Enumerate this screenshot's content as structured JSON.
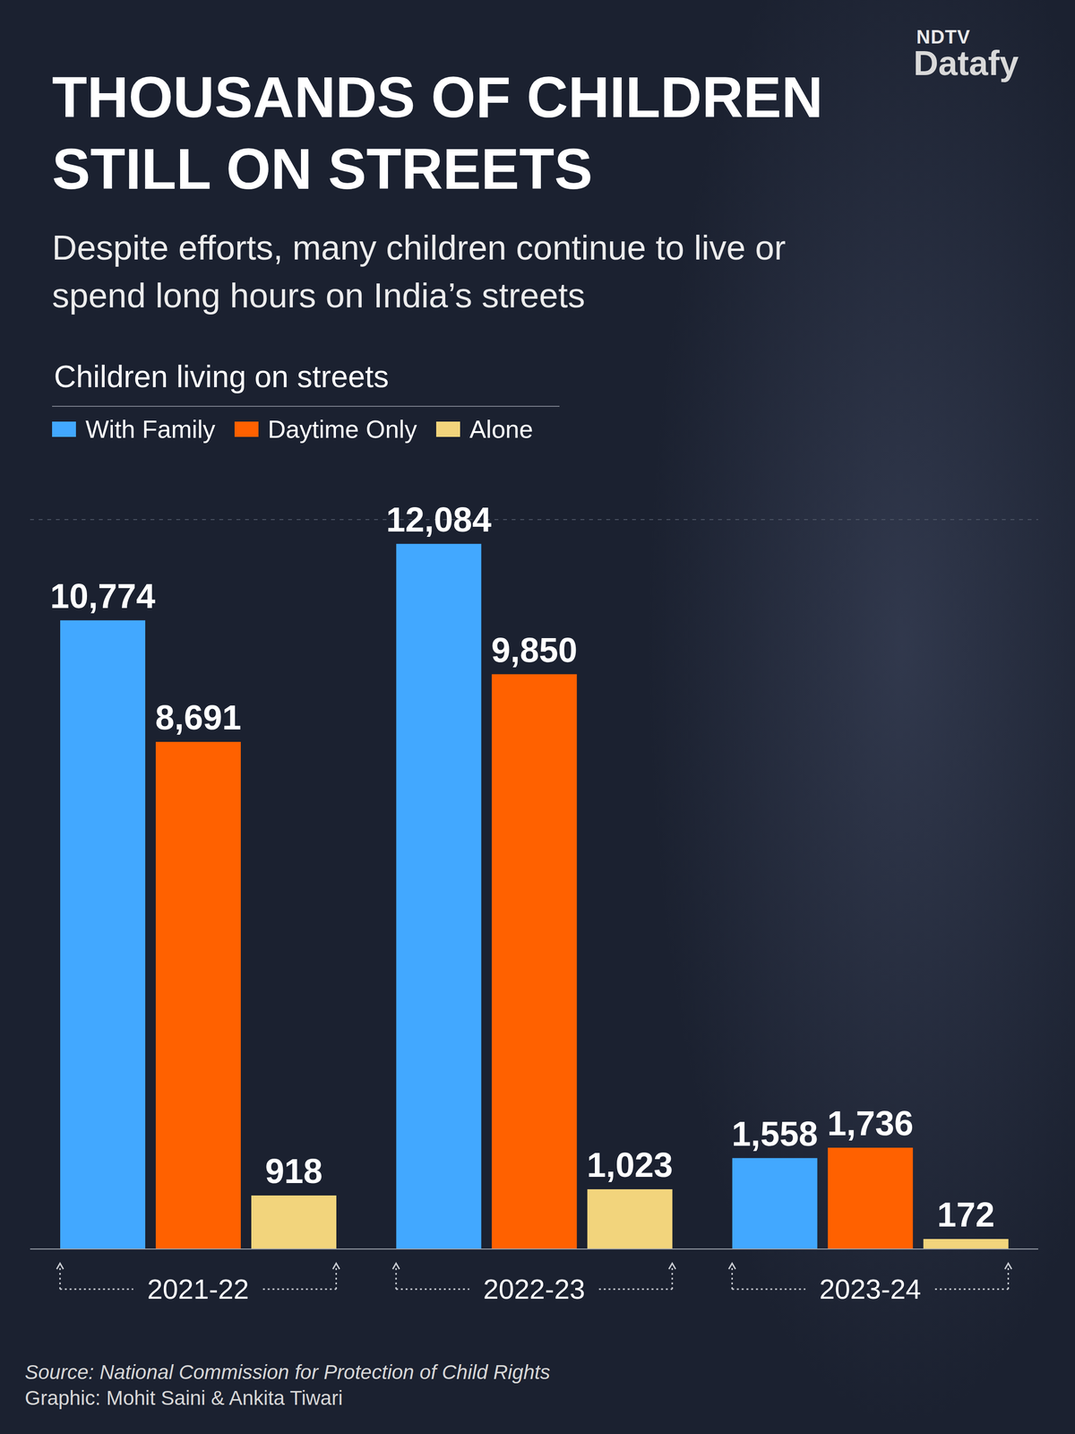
{
  "chart_data": {
    "type": "bar",
    "title": "THOUSANDS OF CHILDREN STILL ON STREETS",
    "subtitle": "Despite efforts, many children continue to live or spend long hours on India’s streets",
    "chart_title": "Children living on streets",
    "source": "Source: National Commission for Protection of Child Rights",
    "credit": "Graphic: Mohit Saini & Ankita Tiwari",
    "brand": [
      "NDTV",
      "Datafy"
    ],
    "categories": [
      "2021-22",
      "2022-23",
      "2023-24"
    ],
    "series": [
      {
        "name": "With Family",
        "color": "#42a8ff",
        "values": [
          10774,
          12084,
          1558
        ],
        "value_labels": [
          "10,774",
          "12,084",
          "1,558"
        ]
      },
      {
        "name": "Daytime Only",
        "color": "#ff6100",
        "values": [
          8691,
          9850,
          1736
        ],
        "value_labels": [
          "8,691",
          "9,850",
          "1,736"
        ]
      },
      {
        "name": "Alone",
        "color": "#f2d47c",
        "values": [
          918,
          1023,
          172
        ],
        "value_labels": [
          "918",
          "1,023",
          "172"
        ]
      }
    ],
    "ylim": [
      0,
      12500
    ],
    "yticks": [
      0,
      3125,
      6250,
      9375,
      12500
    ],
    "grid": true,
    "legend": "top-left",
    "data_labels": true,
    "tick_labels": "x"
  }
}
